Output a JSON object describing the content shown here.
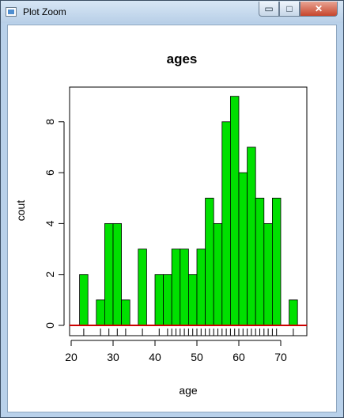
{
  "window": {
    "title": "Plot Zoom",
    "controls": {
      "minimize": "▭",
      "maximize": "□",
      "close": "✕"
    }
  },
  "colors": {
    "bar_fill": "#00e000",
    "bar_stroke": "#000000",
    "rug": "#cc0000"
  },
  "chart_data": {
    "type": "bar",
    "title": "ages",
    "xlabel": "age",
    "ylabel": "cout",
    "xlim": [
      20,
      76
    ],
    "ylim": [
      0,
      9
    ],
    "x_ticks": [
      20,
      30,
      40,
      50,
      60,
      70
    ],
    "y_ticks": [
      0,
      2,
      4,
      6,
      8
    ],
    "bin_width": 2,
    "bins": [
      {
        "start": 22,
        "count": 2
      },
      {
        "start": 24,
        "count": 0
      },
      {
        "start": 26,
        "count": 1
      },
      {
        "start": 28,
        "count": 4
      },
      {
        "start": 30,
        "count": 4
      },
      {
        "start": 32,
        "count": 1
      },
      {
        "start": 34,
        "count": 0
      },
      {
        "start": 36,
        "count": 3
      },
      {
        "start": 38,
        "count": 0
      },
      {
        "start": 40,
        "count": 2
      },
      {
        "start": 42,
        "count": 2
      },
      {
        "start": 44,
        "count": 3
      },
      {
        "start": 46,
        "count": 3
      },
      {
        "start": 48,
        "count": 2
      },
      {
        "start": 50,
        "count": 3
      },
      {
        "start": 52,
        "count": 5
      },
      {
        "start": 54,
        "count": 4
      },
      {
        "start": 56,
        "count": 8
      },
      {
        "start": 58,
        "count": 9
      },
      {
        "start": 60,
        "count": 6
      },
      {
        "start": 62,
        "count": 7
      },
      {
        "start": 64,
        "count": 5
      },
      {
        "start": 66,
        "count": 4
      },
      {
        "start": 68,
        "count": 5
      },
      {
        "start": 70,
        "count": 0
      },
      {
        "start": 72,
        "count": 1
      }
    ],
    "rug": [
      23,
      27,
      29,
      31,
      33,
      37,
      41,
      43,
      44,
      45,
      46,
      47,
      48,
      49,
      50,
      51,
      52,
      53,
      54,
      55,
      56,
      57,
      58,
      59,
      60,
      61,
      62,
      63,
      64,
      65,
      66,
      67,
      68,
      69,
      73
    ]
  }
}
